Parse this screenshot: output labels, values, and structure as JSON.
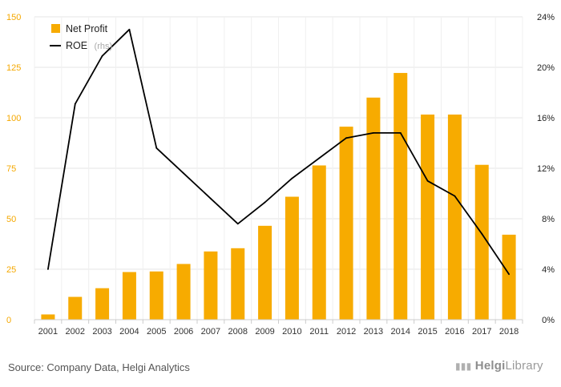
{
  "chart_data": {
    "type": "bar+line",
    "categories": [
      "2001",
      "2002",
      "2003",
      "2004",
      "2005",
      "2006",
      "2007",
      "2008",
      "2009",
      "2010",
      "2011",
      "2012",
      "2013",
      "2014",
      "2015",
      "2016",
      "2017",
      "2018"
    ],
    "series": [
      {
        "name": "Net Profit",
        "type": "bar",
        "axis": "left",
        "values": [
          2.6,
          11.3,
          15.6,
          23.6,
          23.9,
          27.6,
          33.8,
          35.4,
          46.5,
          60.9,
          76.4,
          95.6,
          110.0,
          122.2,
          101.6,
          101.6,
          76.7,
          42.1
        ]
      },
      {
        "name": "ROE",
        "name_suffix": "(rhs)",
        "type": "line",
        "axis": "right",
        "values": [
          4.0,
          17.1,
          20.9,
          23.0,
          13.6,
          11.6,
          9.6,
          7.6,
          9.3,
          11.2,
          12.8,
          14.4,
          14.8,
          14.8,
          11.0,
          9.8,
          6.8,
          3.6
        ]
      }
    ],
    "y_left": {
      "ticks": [
        0,
        25,
        50,
        75,
        100,
        125,
        150
      ],
      "ylim": [
        0,
        150
      ]
    },
    "y_right": {
      "ticks": [
        "0%",
        "4%",
        "8%",
        "12%",
        "16%",
        "20%",
        "24%"
      ],
      "ylim": [
        0,
        24
      ],
      "unit": "%"
    },
    "legend": {
      "placement": "top-left"
    },
    "grid": true,
    "colors": {
      "bar": "#f7ab00",
      "line": "#000000",
      "grid": "#e6e6e6",
      "left_ticks": "#f5a800"
    }
  },
  "footer": {
    "source": "Source: Company Data, Helgi Analytics",
    "brand_prefix": "Helgi",
    "brand_suffix": "Library"
  }
}
